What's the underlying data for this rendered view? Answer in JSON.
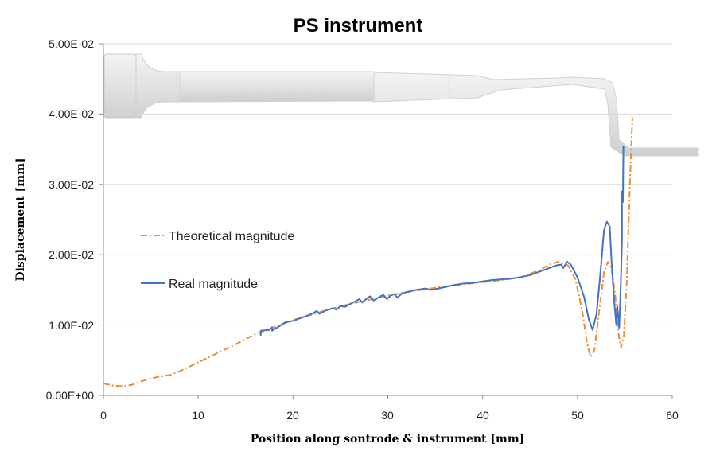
{
  "chart_data": {
    "type": "line",
    "title": "PS instrument",
    "xlabel": "Position along sontrode & instrument [mm]",
    "ylabel": "Displacement [mm]",
    "xlim": [
      0,
      60
    ],
    "ylim": [
      0,
      0.05
    ],
    "x_ticks": [
      "0",
      "10",
      "20",
      "30",
      "40",
      "50",
      "60"
    ],
    "y_ticks": [
      "0.00E+00",
      "1.00E-02",
      "2.00E-02",
      "3.00E-02",
      "4.00E-02",
      "5.00E-02"
    ],
    "legend_position": "left-middle",
    "series": [
      {
        "name": "Theoretical magnitude",
        "color": "#ED8E34",
        "style": "dash-dot",
        "points": [
          [
            0,
            0.0017
          ],
          [
            1,
            0.0014
          ],
          [
            2,
            0.0013
          ],
          [
            3,
            0.0015
          ],
          [
            4,
            0.002
          ],
          [
            5,
            0.0024
          ],
          [
            6,
            0.0027
          ],
          [
            7,
            0.0029
          ],
          [
            8,
            0.0034
          ],
          [
            10,
            0.0047
          ],
          [
            12,
            0.006
          ],
          [
            14,
            0.0073
          ],
          [
            16,
            0.0087
          ],
          [
            18,
            0.0097
          ],
          [
            20,
            0.0107
          ],
          [
            22,
            0.0115
          ],
          [
            24,
            0.0123
          ],
          [
            26,
            0.013
          ],
          [
            28,
            0.0136
          ],
          [
            30,
            0.0142
          ],
          [
            32,
            0.0147
          ],
          [
            34,
            0.0151
          ],
          [
            36,
            0.0155
          ],
          [
            38,
            0.0158
          ],
          [
            40,
            0.0161
          ],
          [
            42,
            0.0164
          ],
          [
            44,
            0.0168
          ],
          [
            46,
            0.0178
          ],
          [
            47,
            0.0186
          ],
          [
            48,
            0.019
          ],
          [
            49,
            0.0185
          ],
          [
            49.8,
            0.0165
          ],
          [
            50.5,
            0.012
          ],
          [
            51,
            0.0075
          ],
          [
            51.4,
            0.0055
          ],
          [
            51.8,
            0.0065
          ],
          [
            52.3,
            0.012
          ],
          [
            52.8,
            0.0175
          ],
          [
            53.2,
            0.019
          ],
          [
            53.6,
            0.018
          ],
          [
            54,
            0.014
          ],
          [
            54.3,
            0.009
          ],
          [
            54.6,
            0.0068
          ],
          [
            54.9,
            0.0085
          ],
          [
            55.2,
            0.016
          ],
          [
            55.5,
            0.029
          ],
          [
            55.8,
            0.0395
          ]
        ]
      },
      {
        "name": "Real magnitude",
        "color": "#4472C4",
        "style": "solid",
        "points": [
          [
            16.6,
            0.0085
          ],
          [
            16.6,
            0.0092
          ],
          [
            17.5,
            0.0093
          ],
          [
            17.8,
            0.0097
          ],
          [
            17.8,
            0.0092
          ],
          [
            18.5,
            0.0098
          ],
          [
            19.2,
            0.0104
          ],
          [
            20,
            0.0106
          ],
          [
            21,
            0.0111
          ],
          [
            22,
            0.0116
          ],
          [
            22.5,
            0.012
          ],
          [
            22.8,
            0.0116
          ],
          [
            23.5,
            0.0121
          ],
          [
            24.2,
            0.0124
          ],
          [
            24.6,
            0.0122
          ],
          [
            25,
            0.0127
          ],
          [
            25.5,
            0.0126
          ],
          [
            26,
            0.013
          ],
          [
            26.5,
            0.0133
          ],
          [
            27,
            0.0137
          ],
          [
            27.3,
            0.0132
          ],
          [
            27.8,
            0.0138
          ],
          [
            28.1,
            0.0141
          ],
          [
            28.5,
            0.0135
          ],
          [
            29,
            0.0139
          ],
          [
            29.5,
            0.0143
          ],
          [
            29.9,
            0.0137
          ],
          [
            30.3,
            0.0142
          ],
          [
            30.7,
            0.0144
          ],
          [
            31,
            0.0139
          ],
          [
            31.5,
            0.0145
          ],
          [
            32,
            0.0147
          ],
          [
            33,
            0.015
          ],
          [
            34,
            0.0152
          ],
          [
            34.5,
            0.015
          ],
          [
            35,
            0.0151
          ],
          [
            36,
            0.0154
          ],
          [
            37,
            0.0157
          ],
          [
            38,
            0.0159
          ],
          [
            39,
            0.016
          ],
          [
            40,
            0.0162
          ],
          [
            41,
            0.0164
          ],
          [
            42,
            0.0165
          ],
          [
            43,
            0.0166
          ],
          [
            44,
            0.0168
          ],
          [
            45,
            0.0171
          ],
          [
            46,
            0.0176
          ],
          [
            47,
            0.0181
          ],
          [
            47.8,
            0.0185
          ],
          [
            48.3,
            0.0186
          ],
          [
            48.5,
            0.0181
          ],
          [
            48.9,
            0.019
          ],
          [
            49.3,
            0.0186
          ],
          [
            50,
            0.0168
          ],
          [
            50.7,
            0.014
          ],
          [
            51.2,
            0.0108
          ],
          [
            51.6,
            0.0093
          ],
          [
            52,
            0.0115
          ],
          [
            52.4,
            0.017
          ],
          [
            52.8,
            0.0235
          ],
          [
            53.1,
            0.0247
          ],
          [
            53.4,
            0.024
          ],
          [
            53.6,
            0.019
          ],
          [
            53.9,
            0.013
          ],
          [
            54.1,
            0.01
          ],
          [
            54.2,
            0.0128
          ],
          [
            54.4,
            0.0096
          ],
          [
            54.5,
            0.013
          ],
          [
            54.6,
            0.017
          ],
          [
            54.7,
            0.022
          ],
          [
            54.7,
            0.029
          ],
          [
            54.8,
            0.0275
          ],
          [
            54.85,
            0.0355
          ]
        ]
      }
    ]
  }
}
